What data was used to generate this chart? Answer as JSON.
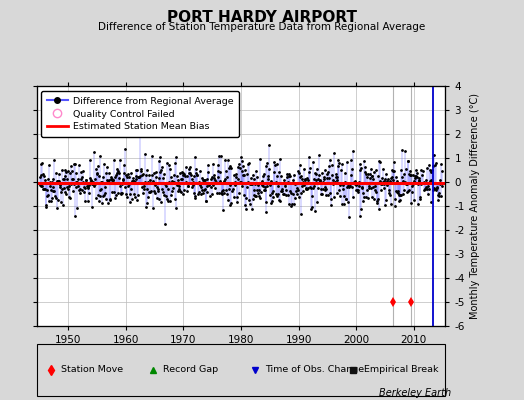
{
  "title": "PORT HARDY AIRPORT",
  "subtitle": "Difference of Station Temperature Data from Regional Average",
  "ylabel": "Monthly Temperature Anomaly Difference (°C)",
  "xlim": [
    1944.5,
    2015.5
  ],
  "ylim": [
    -6,
    4
  ],
  "yticks": [
    -6,
    -5,
    -4,
    -3,
    -2,
    -1,
    0,
    1,
    2,
    3,
    4
  ],
  "xticks": [
    1950,
    1960,
    1970,
    1980,
    1990,
    2000,
    2010
  ],
  "start_year": 1945,
  "end_year": 2015,
  "bias_level": -0.05,
  "station_move_years": [
    2006.4,
    2009.6
  ],
  "obs_change_year": 2013.3,
  "background_color": "#d8d8d8",
  "plot_bg_color": "#ffffff",
  "line_color": "#5555ff",
  "marker_color": "#000000",
  "bias_color": "#ff0000",
  "station_move_color": "#ff0000",
  "record_gap_color": "#008000",
  "obs_change_color": "#0000cc",
  "empirical_break_color": "#000000",
  "random_seed": 42,
  "noise_std": 0.52,
  "seasonal_amp": 0.0
}
